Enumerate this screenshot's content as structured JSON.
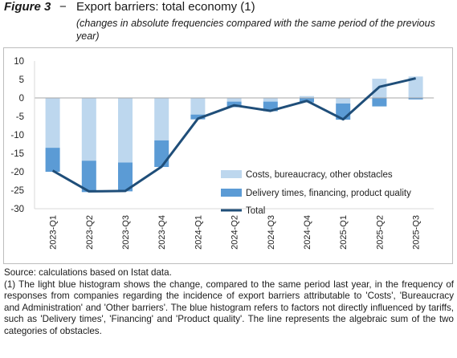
{
  "header": {
    "figure_label": "Figure 3",
    "dash": "−",
    "title": "Export barriers: total economy (1)",
    "subtitle": "(changes in absolute frequencies compared with the same period of the previous year)"
  },
  "chart_data": {
    "type": "bar",
    "stacked": true,
    "categories": [
      "2023-Q1",
      "2023-Q2",
      "2023-Q3",
      "2023-Q4",
      "2024-Q1",
      "2024-Q2",
      "2024-Q3",
      "2024-Q4",
      "2025-Q1",
      "2025-Q2",
      "2025-Q3"
    ],
    "series": [
      {
        "name": "Costs, bureaucracy, other obstacles",
        "kind": "bar",
        "color": "#bdd7ee",
        "values": [
          -13.5,
          -17.0,
          -17.5,
          -11.5,
          -4.5,
          -1.0,
          -1.0,
          0.5,
          -1.5,
          5.2,
          5.8
        ]
      },
      {
        "name": "Delivery times, financing, product quality",
        "kind": "bar",
        "color": "#5b9bd5",
        "values": [
          -6.5,
          -8.5,
          -7.8,
          -7.2,
          -1.3,
          -1.5,
          -2.6,
          -1.2,
          -4.4,
          -2.3,
          -0.4
        ]
      },
      {
        "name": "Total",
        "kind": "line",
        "color": "#1f4e79",
        "values": [
          -19.7,
          -25.3,
          -25.2,
          -18.6,
          -5.6,
          -2.0,
          -3.5,
          -0.8,
          -5.8,
          3.0,
          5.3
        ]
      }
    ],
    "yticks": [
      10,
      5,
      0,
      -5,
      -10,
      -15,
      -20,
      -25,
      -30
    ],
    "ylim": [
      -30,
      10
    ],
    "legend_position": "lower-right",
    "grid": false
  },
  "footer": {
    "source": "Source: calculations based on Istat data.",
    "note": "(1) The light blue histogram shows the change, compared to the same period last year, in the frequency of responses from companies regarding the incidence of export barriers attributable to 'Costs', 'Bureaucracy and Administration' and 'Other barriers'. The blue histogram refers to factors not directly influenced by tariffs, such as 'Delivery times', 'Financing' and 'Product quality'. The line represents the algebraic sum of the two categories of obstacles."
  }
}
